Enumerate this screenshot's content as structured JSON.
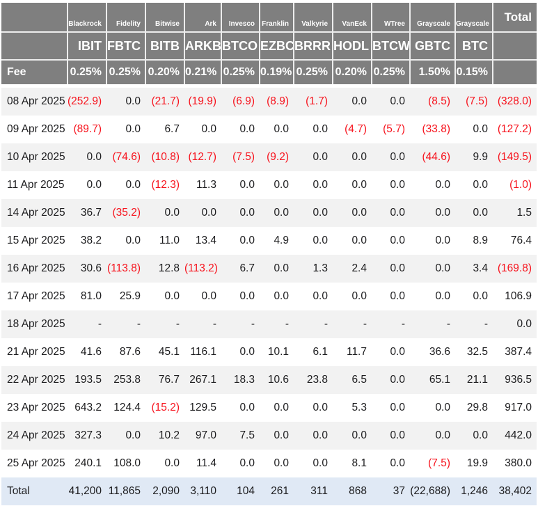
{
  "chart_data": {
    "type": "table",
    "description": "Bitcoin ETF daily flow table (US$m), negative values shown in red parentheses",
    "total_header": "Total",
    "fee_label": "Fee",
    "institutions": [
      "Blackrock",
      "Fidelity",
      "Bitwise",
      "Ark",
      "Invesco",
      "Franklin",
      "Valkyrie",
      "VanEck",
      "WTree",
      "Grayscale",
      "Grayscale"
    ],
    "tickers": [
      "IBIT",
      "FBTC",
      "BITB",
      "ARKB",
      "BTCO",
      "EZBC",
      "BRRR",
      "HODL",
      "BTCW",
      "GBTC",
      "BTC"
    ],
    "fees": [
      "0.25%",
      "0.25%",
      "0.20%",
      "0.21%",
      "0.25%",
      "0.19%",
      "0.25%",
      "0.20%",
      "0.25%",
      "1.50%",
      "0.15%"
    ],
    "rows": [
      {
        "date": "08 Apr 2025",
        "values": [
          "(252.9)",
          "0.0",
          "(21.7)",
          "(19.9)",
          "(6.9)",
          "(8.9)",
          "(1.7)",
          "0.0",
          "0.0",
          "(8.5)",
          "(7.5)"
        ],
        "total": "(328.0)"
      },
      {
        "date": "09 Apr 2025",
        "values": [
          "(89.7)",
          "0.0",
          "6.7",
          "0.0",
          "0.0",
          "0.0",
          "0.0",
          "(4.7)",
          "(5.7)",
          "(33.8)",
          "0.0"
        ],
        "total": "(127.2)"
      },
      {
        "date": "10 Apr 2025",
        "values": [
          "0.0",
          "(74.6)",
          "(10.8)",
          "(12.7)",
          "(7.5)",
          "(9.2)",
          "0.0",
          "0.0",
          "0.0",
          "(44.6)",
          "9.9"
        ],
        "total": "(149.5)"
      },
      {
        "date": "11 Apr 2025",
        "values": [
          "0.0",
          "0.0",
          "(12.3)",
          "11.3",
          "0.0",
          "0.0",
          "0.0",
          "0.0",
          "0.0",
          "0.0",
          "0.0"
        ],
        "total": "(1.0)"
      },
      {
        "date": "14 Apr 2025",
        "values": [
          "36.7",
          "(35.2)",
          "0.0",
          "0.0",
          "0.0",
          "0.0",
          "0.0",
          "0.0",
          "0.0",
          "0.0",
          "0.0"
        ],
        "total": "1.5"
      },
      {
        "date": "15 Apr 2025",
        "values": [
          "38.2",
          "0.0",
          "11.0",
          "13.4",
          "0.0",
          "4.9",
          "0.0",
          "0.0",
          "0.0",
          "0.0",
          "8.9"
        ],
        "total": "76.4"
      },
      {
        "date": "16 Apr 2025",
        "values": [
          "30.6",
          "(113.8)",
          "12.8",
          "(113.2)",
          "6.7",
          "0.0",
          "1.3",
          "2.4",
          "0.0",
          "0.0",
          "3.4"
        ],
        "total": "(169.8)"
      },
      {
        "date": "17 Apr 2025",
        "values": [
          "81.0",
          "25.9",
          "0.0",
          "0.0",
          "0.0",
          "0.0",
          "0.0",
          "0.0",
          "0.0",
          "0.0",
          "0.0"
        ],
        "total": "106.9"
      },
      {
        "date": "18 Apr 2025",
        "values": [
          "-",
          "-",
          "-",
          "-",
          "-",
          "-",
          "-",
          "-",
          "-",
          "-",
          "-"
        ],
        "total": "0.0"
      },
      {
        "date": "21 Apr 2025",
        "values": [
          "41.6",
          "87.6",
          "45.1",
          "116.1",
          "0.0",
          "10.1",
          "6.1",
          "11.7",
          "0.0",
          "36.6",
          "32.5"
        ],
        "total": "387.4"
      },
      {
        "date": "22 Apr 2025",
        "values": [
          "193.5",
          "253.8",
          "76.7",
          "267.1",
          "18.3",
          "10.6",
          "23.8",
          "6.5",
          "0.0",
          "65.1",
          "21.1"
        ],
        "total": "936.5"
      },
      {
        "date": "23 Apr 2025",
        "values": [
          "643.2",
          "124.4",
          "(15.2)",
          "129.5",
          "0.0",
          "0.0",
          "0.0",
          "5.3",
          "0.0",
          "0.0",
          "29.8"
        ],
        "total": "917.0"
      },
      {
        "date": "24 Apr 2025",
        "values": [
          "327.3",
          "0.0",
          "10.2",
          "97.0",
          "7.5",
          "0.0",
          "0.0",
          "0.0",
          "0.0",
          "0.0",
          "0.0"
        ],
        "total": "442.0"
      },
      {
        "date": "25 Apr 2025",
        "values": [
          "240.1",
          "108.0",
          "0.0",
          "11.4",
          "0.0",
          "0.0",
          "0.0",
          "8.1",
          "0.0",
          "(7.5)",
          "19.9"
        ],
        "total": "380.0"
      }
    ],
    "total_row": {
      "label": "Total",
      "values": [
        "41,200",
        "11,865",
        "2,090",
        "3,110",
        "104",
        "261",
        "311",
        "868",
        "37",
        "(22,688)",
        "1,246"
      ],
      "total": "38,402"
    },
    "layout": {
      "negative_format": "parentheses",
      "alternating_rows": true
    }
  },
  "colors": {
    "header_bg": "#7f7f7f",
    "header_text": "#ffffff",
    "negative_value": "#f7131d",
    "value_text": "#1c1c1e",
    "row_alt_bg": "#f2f2f2",
    "row_bg": "#ffffff",
    "total_row_bg": "#e0e9f5"
  }
}
